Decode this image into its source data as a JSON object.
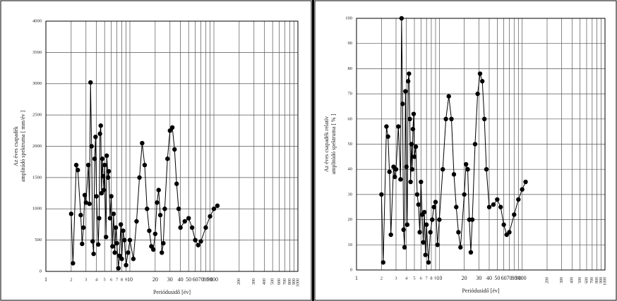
{
  "chart_data": [
    {
      "type": "line",
      "color": "#000000",
      "xscale": "log",
      "grid": true,
      "ylabel": [
        "Az éves csapadék",
        "amplitúdó spektruma [ mm/év ]"
      ],
      "xlabel": "Periódusidő [év]",
      "xlim": [
        1,
        1000
      ],
      "ylim": [
        0,
        4000
      ],
      "xticks": [
        1,
        2,
        3,
        4,
        5,
        6,
        7,
        8,
        9,
        10,
        20,
        30,
        40,
        50,
        60,
        70,
        80,
        90,
        100,
        200,
        300,
        400,
        500,
        600,
        700,
        800,
        900,
        1000
      ],
      "yticks": [
        0,
        500,
        1000,
        1500,
        2000,
        2500,
        3000,
        3500,
        4000
      ],
      "x": [
        2,
        2.1,
        2.3,
        2.4,
        2.6,
        2.7,
        2.8,
        2.9,
        3,
        3.2,
        3.3,
        3.4,
        3.5,
        3.6,
        3.7,
        3.8,
        3.9,
        4,
        4.2,
        4.3,
        4.4,
        4.5,
        4.6,
        4.7,
        4.8,
        4.9,
        5,
        5.2,
        5.3,
        5.5,
        5.6,
        5.8,
        6,
        6.2,
        6.4,
        6.6,
        6.8,
        7,
        7.3,
        7.5,
        7.8,
        8,
        8.3,
        8.6,
        9,
        9.5,
        10,
        11,
        12,
        13,
        14,
        15,
        16,
        17,
        18,
        19,
        20,
        21,
        22,
        23,
        24,
        25,
        26,
        28,
        30,
        32,
        34,
        36,
        38,
        40,
        45,
        50,
        55,
        60,
        65,
        70,
        80,
        90,
        100,
        110
      ],
      "values": [
        920,
        130,
        1700,
        1620,
        900,
        440,
        700,
        1220,
        1100,
        1700,
        1080,
        3020,
        2000,
        480,
        280,
        1800,
        2150,
        1200,
        430,
        850,
        2200,
        2330,
        1250,
        1800,
        1520,
        1300,
        1700,
        550,
        1850,
        1500,
        1600,
        850,
        1200,
        400,
        920,
        300,
        700,
        450,
        50,
        250,
        750,
        200,
        650,
        500,
        100,
        300,
        500,
        200,
        800,
        1500,
        2050,
        1700,
        1000,
        650,
        400,
        350,
        600,
        1100,
        1300,
        900,
        300,
        450,
        1000,
        1800,
        2250,
        2300,
        1950,
        1400,
        1000,
        700,
        800,
        850,
        700,
        500,
        420,
        480,
        700,
        880,
        1000,
        1050
      ]
    },
    {
      "type": "line",
      "color": "#000000",
      "xscale": "log",
      "grid": true,
      "ylabel": [
        "Az éves csapadék relatív",
        "amplitúdó spektruma [ % ]"
      ],
      "xlabel": "Periódusidő [év]",
      "xlim": [
        1,
        1000
      ],
      "ylim": [
        0,
        100
      ],
      "xticks": [
        1,
        2,
        3,
        4,
        5,
        6,
        7,
        8,
        9,
        10,
        20,
        30,
        40,
        50,
        60,
        70,
        80,
        90,
        100,
        200,
        300,
        400,
        500,
        600,
        700,
        800,
        900,
        1000
      ],
      "yticks": [
        0,
        10,
        20,
        30,
        40,
        50,
        60,
        70,
        80,
        90,
        100
      ],
      "x": [
        2,
        2.1,
        2.3,
        2.4,
        2.5,
        2.6,
        2.8,
        2.9,
        3,
        3.2,
        3.4,
        3.5,
        3.6,
        3.7,
        3.8,
        3.9,
        4,
        4.1,
        4.2,
        4.3,
        4.4,
        4.5,
        4.6,
        4.7,
        4.8,
        4.9,
        5,
        5.2,
        5.4,
        5.6,
        5.8,
        6,
        6.2,
        6.4,
        6.6,
        6.8,
        7,
        7.4,
        7.8,
        8.2,
        8.6,
        9,
        9.5,
        10,
        11,
        12,
        13,
        14,
        15,
        16,
        17,
        18,
        20,
        21,
        22,
        23,
        24,
        25,
        27,
        29,
        31,
        33,
        35,
        37,
        40,
        45,
        50,
        55,
        60,
        65,
        70,
        80,
        90,
        100,
        110
      ],
      "values": [
        30,
        3,
        57,
        53,
        39,
        14,
        41,
        37,
        40,
        57,
        36,
        100,
        66,
        16,
        9,
        71,
        41,
        18,
        75,
        78,
        60,
        35,
        50,
        40,
        56,
        62,
        45,
        49,
        30,
        26,
        15,
        35,
        22,
        11,
        23,
        6,
        18,
        3,
        15,
        20,
        25,
        27,
        10,
        20,
        40,
        60,
        69,
        60,
        38,
        25,
        15,
        9,
        30,
        42,
        40,
        20,
        7,
        20,
        50,
        70,
        78,
        75,
        60,
        40,
        25,
        26,
        28,
        25,
        18,
        14,
        15,
        22,
        28,
        32,
        35
      ]
    }
  ]
}
